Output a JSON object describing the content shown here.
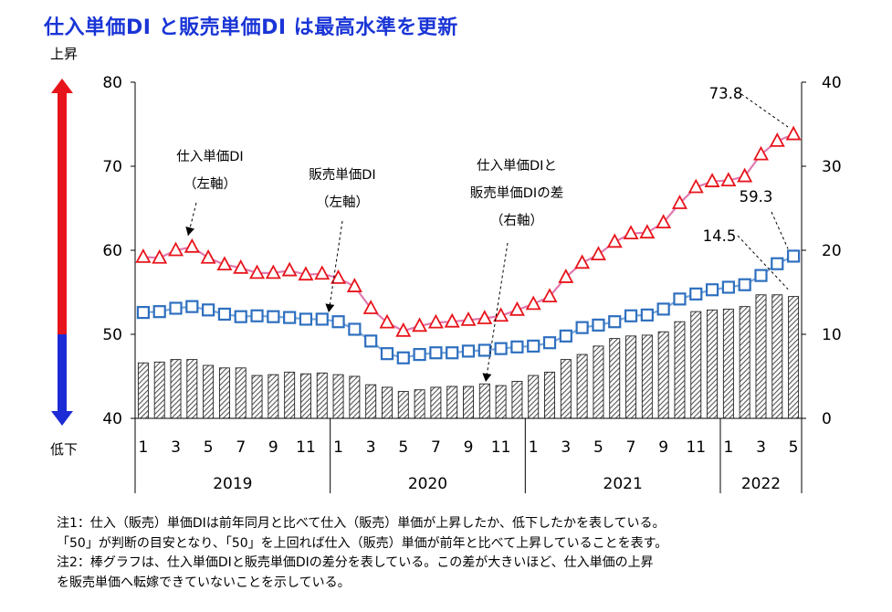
{
  "page_title": "仕入単価DI と販売単価DI は最高水準を更新",
  "indicator": {
    "up_label": "上昇",
    "down_label": "低下",
    "up_color": "#e8141b",
    "down_color": "#1d2bd6"
  },
  "notes": [
    "注1：仕入（販売）単価DIは前年同月と比べて仕入（販売）単価が上昇したか、低下したかを表している。",
    "「50」が判断の目安となり、「50」を上回れば仕入（販売）単価が前年と比べて上昇していることを表す。",
    "注2：棒グラフは、仕入単価DIと販売単価DIの差分を表している。この差が大きいほど、仕入単価の上昇",
    "を販売単価へ転嫁できていないことを示している。"
  ],
  "chart_data": {
    "type": "bar+line",
    "title": "仕入単価DI と販売単価DI は最高水準を更新",
    "x_tick_labels": [
      "1",
      "",
      "3",
      "",
      "5",
      "",
      "7",
      "",
      "9",
      "",
      "11",
      "",
      "1",
      "",
      "3",
      "",
      "5",
      "",
      "7",
      "",
      "9",
      "",
      "11",
      "",
      "1",
      "",
      "3",
      "",
      "5",
      "",
      "7",
      "",
      "9",
      "",
      "11",
      "",
      "1",
      "",
      "3",
      "",
      "5"
    ],
    "years": [
      {
        "label": "2019",
        "start": 0,
        "count": 12
      },
      {
        "label": "2020",
        "start": 12,
        "count": 12
      },
      {
        "label": "2021",
        "start": 24,
        "count": 12
      },
      {
        "label": "2022",
        "start": 36,
        "count": 5
      }
    ],
    "left_axis": {
      "ylim": [
        40,
        80
      ],
      "ticks": [
        "40",
        "50",
        "60",
        "70",
        "80"
      ]
    },
    "right_axis": {
      "ylim": [
        0,
        40
      ],
      "ticks": [
        "0",
        "10",
        "20",
        "30",
        "40"
      ]
    },
    "series": [
      {
        "name": "仕入単価DI",
        "axis": "left",
        "kind": "line",
        "marker": "triangle",
        "color": "#e8141b",
        "values": [
          59.2,
          59.1,
          60.0,
          60.4,
          59.1,
          58.3,
          57.9,
          57.3,
          57.3,
          57.6,
          57.1,
          57.2,
          56.7,
          55.7,
          53.1,
          51.4,
          50.4,
          51.0,
          51.4,
          51.5,
          51.7,
          51.9,
          52.2,
          52.9,
          53.6,
          54.5,
          56.8,
          58.5,
          59.5,
          61.0,
          62.0,
          62.1,
          63.3,
          65.6,
          67.5,
          68.2,
          68.3,
          68.8,
          71.4,
          73.0,
          73.8
        ]
      },
      {
        "name": "販売単価DI",
        "axis": "left",
        "kind": "line",
        "marker": "square",
        "color": "#2e6fbf",
        "values": [
          52.6,
          52.7,
          53.1,
          53.3,
          52.9,
          52.4,
          52.1,
          52.2,
          52.1,
          52.0,
          51.8,
          51.8,
          51.5,
          50.6,
          49.2,
          47.7,
          47.2,
          47.6,
          47.8,
          47.8,
          48.0,
          48.1,
          48.3,
          48.5,
          48.6,
          49.0,
          49.8,
          50.8,
          51.1,
          51.5,
          52.2,
          52.3,
          53.0,
          54.2,
          54.8,
          55.3,
          55.6,
          55.9,
          57.0,
          58.4,
          59.3
        ]
      },
      {
        "name": "仕入単価DIと販売単価DIの差",
        "axis": "right",
        "kind": "bar",
        "color": "#808080",
        "values": [
          6.6,
          6.7,
          7.0,
          7.0,
          6.3,
          6.0,
          6.0,
          5.1,
          5.2,
          5.5,
          5.3,
          5.4,
          5.2,
          5.0,
          4.0,
          3.7,
          3.2,
          3.4,
          3.7,
          3.8,
          3.8,
          4.1,
          3.9,
          4.4,
          5.1,
          5.5,
          7.0,
          7.6,
          8.6,
          9.5,
          9.8,
          9.9,
          10.3,
          11.5,
          12.7,
          12.9,
          13.0,
          13.3,
          14.7,
          14.7,
          14.5
        ]
      }
    ],
    "callouts": [
      {
        "lines": [
          "仕入単価DI",
          "（左軸）"
        ]
      },
      {
        "lines": [
          "販売単価DI",
          "（左軸）"
        ]
      },
      {
        "lines": [
          "仕入単価DIと",
          "販売単価DIの差",
          "（右軸）"
        ]
      }
    ],
    "value_labels": [
      {
        "text": "73.8",
        "series": 0
      },
      {
        "text": "59.3",
        "series": 1
      },
      {
        "text": "14.5",
        "series": 2
      }
    ]
  }
}
